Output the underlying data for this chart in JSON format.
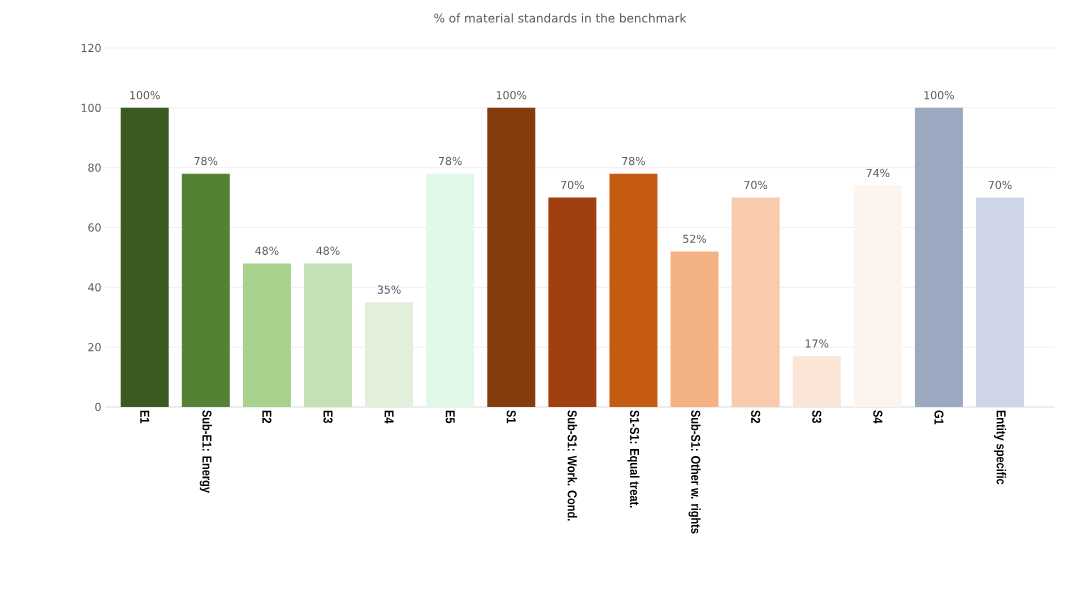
{
  "chart_data": {
    "type": "bar",
    "title": "% of material standards in the benchmark",
    "categories": [
      "E1",
      "Sub-E1: Energy",
      "E2",
      "E3",
      "E4",
      "E5",
      "S1",
      "Sub-S1: Work. Cond.",
      "S1-S1: Equal treat.",
      "Sub-S1: Other w. rights",
      "S2",
      "S3",
      "S4",
      "G1",
      "Entity specific"
    ],
    "values": [
      100,
      78,
      48,
      48,
      35,
      78,
      100,
      70,
      78,
      52,
      70,
      17,
      74,
      100,
      70
    ],
    "value_labels": [
      "100%",
      "78%",
      "48%",
      "48%",
      "35%",
      "78%",
      "100%",
      "70%",
      "78%",
      "52%",
      "70%",
      "17%",
      "74%",
      "100%",
      "70%"
    ],
    "colors": [
      "#3a5a22",
      "#548235",
      "#a9d18e",
      "#c5e0b4",
      "#e2efda",
      "#e2f8e8",
      "#843c0c",
      "#a04010",
      "#c55a11",
      "#f4b183",
      "#f8cbad",
      "#fbe5d6",
      "#fef4ef",
      "#9aa9c0",
      "#cfd5e8"
    ],
    "ylim": [
      0,
      120
    ],
    "yticks": [
      0,
      20,
      40,
      60,
      80,
      100,
      120
    ],
    "grid": "y"
  }
}
